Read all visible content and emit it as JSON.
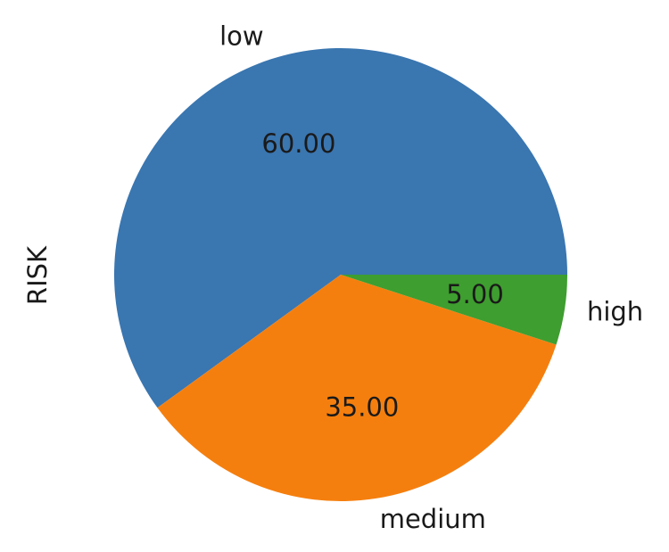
{
  "chart_data": {
    "type": "pie",
    "ylabel": "RISK",
    "value_format": "%.2f",
    "start_angle_deg": 0,
    "direction": "counterclockwise",
    "slices": [
      {
        "label": "low",
        "value": 60.0,
        "display": "60.00",
        "color": "#3a76b0"
      },
      {
        "label": "medium",
        "value": 35.0,
        "display": "35.00",
        "color": "#f57f0e"
      },
      {
        "label": "high",
        "value": 5.0,
        "display": "5.00",
        "color": "#3e9e2f"
      }
    ]
  }
}
